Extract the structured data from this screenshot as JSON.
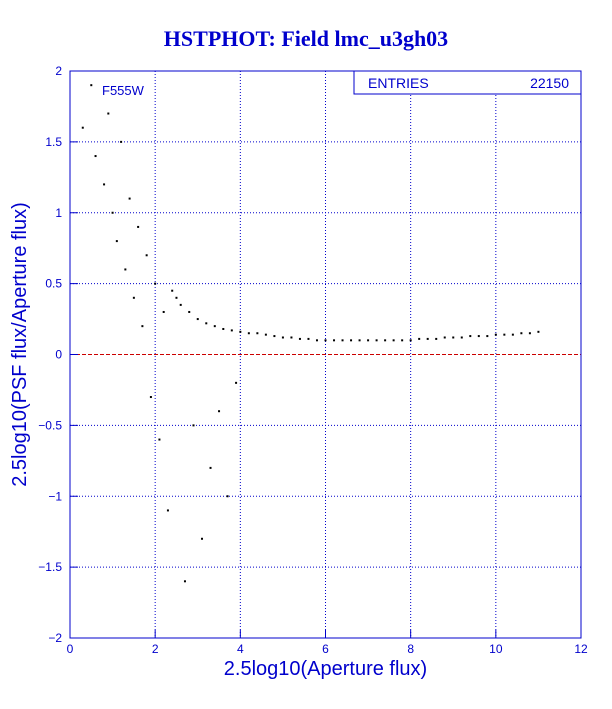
{
  "chart_data": {
    "type": "scatter",
    "title": "HSTPHOT: Field lmc_u3gh03",
    "xlabel": "2.5log10(Aperture flux)",
    "ylabel": "2.5log10(PSF flux/Aperture flux)",
    "xlim": [
      0,
      12
    ],
    "ylim": [
      -2,
      2
    ],
    "x_ticks": [
      0,
      2,
      4,
      6,
      8,
      10,
      12
    ],
    "y_ticks": [
      -2,
      -1.5,
      -1,
      -0.5,
      0,
      0.5,
      1,
      1.5,
      2
    ],
    "grid": true,
    "filter_label": "F555W",
    "stats_box": {
      "label": "ENTRIES",
      "value": "22150"
    },
    "reference_line": {
      "y": 0,
      "color": "#cc0000",
      "style": "dashed"
    },
    "colors": {
      "axis": "#0000cc",
      "grid": "#0000cc",
      "points": "#000000",
      "title": "#0000cc"
    },
    "series": [
      {
        "points_description_note": "",
        "x": [
          0.3,
          0.5,
          0.6,
          0.8,
          0.9,
          1.0,
          1.1,
          1.2,
          1.3,
          1.4,
          1.5,
          1.6,
          1.7,
          1.8,
          1.9,
          2.0,
          2.1,
          2.2,
          2.3,
          2.4,
          2.5,
          2.6,
          2.7,
          2.8,
          2.9,
          3.0,
          3.1,
          3.2,
          3.3,
          3.4,
          3.5,
          3.6,
          3.7,
          3.8,
          3.9,
          4.0,
          4.2,
          4.4,
          4.6,
          4.8,
          5.0,
          5.2,
          5.4,
          5.6,
          5.8,
          6.0,
          6.2,
          6.4,
          6.6,
          6.8,
          7.0,
          7.2,
          7.4,
          7.6,
          7.8,
          8.0,
          8.2,
          8.4,
          8.6,
          8.8,
          9.0,
          9.2,
          9.4,
          9.6,
          9.8,
          10.0,
          10.2,
          10.4,
          10.6,
          10.8,
          11.0
        ],
        "y": [
          1.6,
          1.9,
          1.4,
          1.2,
          1.7,
          1.0,
          0.8,
          1.5,
          0.6,
          1.1,
          0.4,
          0.9,
          0.2,
          0.7,
          -0.3,
          0.5,
          -0.6,
          0.3,
          -1.1,
          0.45,
          0.4,
          0.35,
          -1.6,
          0.3,
          -0.5,
          0.25,
          -1.3,
          0.22,
          -0.8,
          0.2,
          -0.4,
          0.18,
          -1.0,
          0.17,
          -0.2,
          0.16,
          0.15,
          0.15,
          0.14,
          0.13,
          0.12,
          0.12,
          0.11,
          0.11,
          0.1,
          0.1,
          0.1,
          0.1,
          0.1,
          0.1,
          0.1,
          0.1,
          0.1,
          0.1,
          0.1,
          0.1,
          0.11,
          0.11,
          0.11,
          0.12,
          0.12,
          0.12,
          0.13,
          0.13,
          0.13,
          0.14,
          0.14,
          0.14,
          0.15,
          0.15,
          0.16
        ]
      }
    ]
  }
}
